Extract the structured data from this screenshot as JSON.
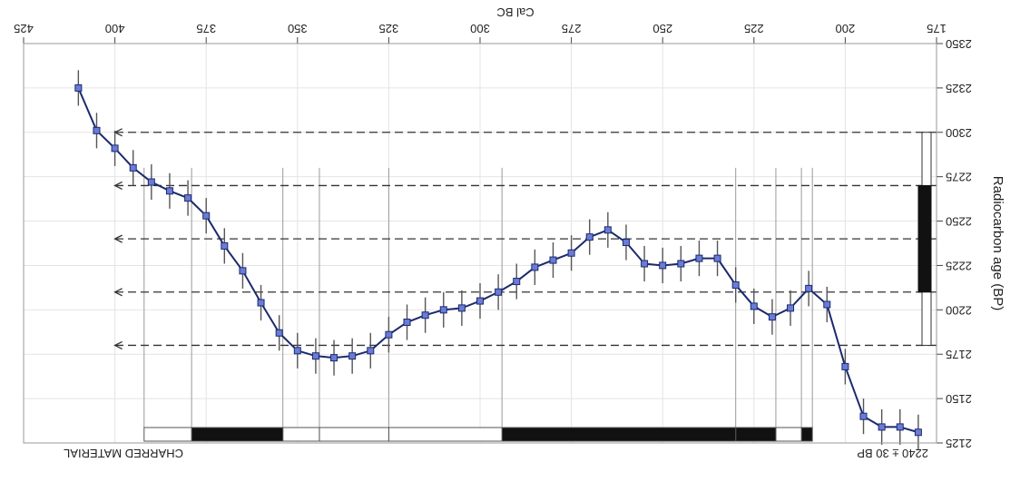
{
  "chart_data": {
    "type": "line",
    "orientation": "rotated-180",
    "title": "Cal BC",
    "xlabel": "",
    "ylabel": "Radiocarbon age (BP)",
    "sample_label": "2240 ± 30 BP",
    "material_label": "CHARRED MATERIAL",
    "x_ticks": [
      175,
      200,
      225,
      250,
      275,
      300,
      325,
      350,
      375,
      400,
      425
    ],
    "y_ticks": [
      2125,
      2150,
      2175,
      2200,
      2225,
      2250,
      2275,
      2300,
      2325,
      2350
    ],
    "xlim": [
      175,
      425
    ],
    "ylim": [
      2125,
      2350
    ],
    "grid": true,
    "series": [
      {
        "values": [
          {
            "x": 180,
            "y": 2131
          },
          {
            "x": 185,
            "y": 2134
          },
          {
            "x": 190,
            "y": 2134
          },
          {
            "x": 195,
            "y": 2140
          },
          {
            "x": 200,
            "y": 2168
          },
          {
            "x": 205,
            "y": 2203
          },
          {
            "x": 210,
            "y": 2212
          },
          {
            "x": 215,
            "y": 2201
          },
          {
            "x": 220,
            "y": 2196
          },
          {
            "x": 225,
            "y": 2202
          },
          {
            "x": 230,
            "y": 2214
          },
          {
            "x": 235,
            "y": 2229
          },
          {
            "x": 240,
            "y": 2229
          },
          {
            "x": 245,
            "y": 2226
          },
          {
            "x": 250,
            "y": 2225
          },
          {
            "x": 255,
            "y": 2226
          },
          {
            "x": 260,
            "y": 2238
          },
          {
            "x": 265,
            "y": 2245
          },
          {
            "x": 270,
            "y": 2241
          },
          {
            "x": 275,
            "y": 2232
          },
          {
            "x": 280,
            "y": 2228
          },
          {
            "x": 285,
            "y": 2224
          },
          {
            "x": 290,
            "y": 2216
          },
          {
            "x": 295,
            "y": 2210
          },
          {
            "x": 300,
            "y": 2205
          },
          {
            "x": 305,
            "y": 2201
          },
          {
            "x": 310,
            "y": 2200
          },
          {
            "x": 315,
            "y": 2197
          },
          {
            "x": 320,
            "y": 2193
          },
          {
            "x": 325,
            "y": 2186
          },
          {
            "x": 330,
            "y": 2177
          },
          {
            "x": 335,
            "y": 2174
          },
          {
            "x": 340,
            "y": 2173
          },
          {
            "x": 345,
            "y": 2174
          },
          {
            "x": 350,
            "y": 2177
          },
          {
            "x": 355,
            "y": 2187
          },
          {
            "x": 360,
            "y": 2204
          },
          {
            "x": 365,
            "y": 2222
          },
          {
            "x": 370,
            "y": 2236
          },
          {
            "x": 375,
            "y": 2253
          },
          {
            "x": 380,
            "y": 2263
          },
          {
            "x": 385,
            "y": 2267
          },
          {
            "x": 390,
            "y": 2272
          },
          {
            "x": 395,
            "y": 2280
          },
          {
            "x": 400,
            "y": 2291
          },
          {
            "x": 405,
            "y": 2301
          },
          {
            "x": 410,
            "y": 2325
          }
        ],
        "error": 10
      }
    ],
    "range_bars": [
      {
        "from": 209,
        "to": 212,
        "fill": "black"
      },
      {
        "from": 212,
        "to": 219,
        "fill": "white"
      },
      {
        "from": 219,
        "to": 230,
        "fill": "black"
      },
      {
        "from": 230,
        "to": 294,
        "fill": "black"
      },
      {
        "from": 294,
        "to": 325,
        "fill": "white"
      },
      {
        "from": 325,
        "to": 344,
        "fill": "white"
      },
      {
        "from": 344,
        "to": 354,
        "fill": "white"
      },
      {
        "from": 354,
        "to": 379,
        "fill": "black"
      },
      {
        "from": 379,
        "to": 392,
        "fill": "white"
      }
    ],
    "age_markers": [
      2180,
      2210,
      2240,
      2270,
      2300
    ],
    "sigma_bar": {
      "outer": [
        2180,
        2300
      ],
      "inner": [
        2210,
        2270
      ]
    }
  }
}
